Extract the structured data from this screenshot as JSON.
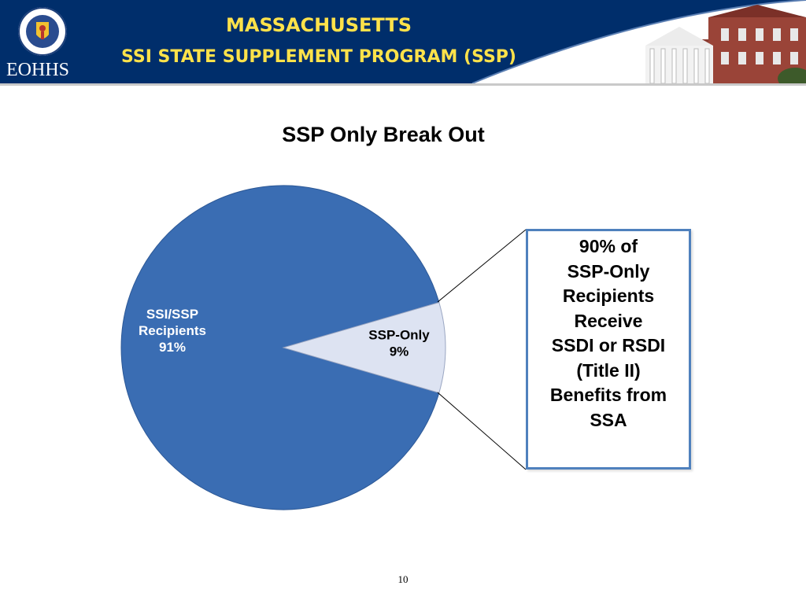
{
  "header": {
    "title_line1": "MASSACHUSETTS",
    "title_line2": "SSI STATE SUPPLEMENT PROGRAM (SSP)",
    "agency": "EOHHS",
    "seal_icon": "massachusetts-seal-icon",
    "building_icon": "state-house-building-icon",
    "background_color": "#002e6b",
    "title_color": "#ffe24a"
  },
  "chart_data": {
    "type": "pie",
    "title": "SSP Only Break Out",
    "slices": [
      {
        "label": "SSI/SSP\nRecipients\n91%",
        "value": 91,
        "color": "#3a6db3"
      },
      {
        "label": "SSP-Only\n9%",
        "value": 9,
        "color": "#dde3f2"
      }
    ],
    "legend": "none"
  },
  "callout": {
    "text": "90% of\nSSP-Only\nRecipients\nReceive\nSSDI or RSDI\n(Title II)\nBenefits from\nSSA",
    "border_color": "#4f81bd"
  },
  "footer": {
    "page_number": "10"
  }
}
